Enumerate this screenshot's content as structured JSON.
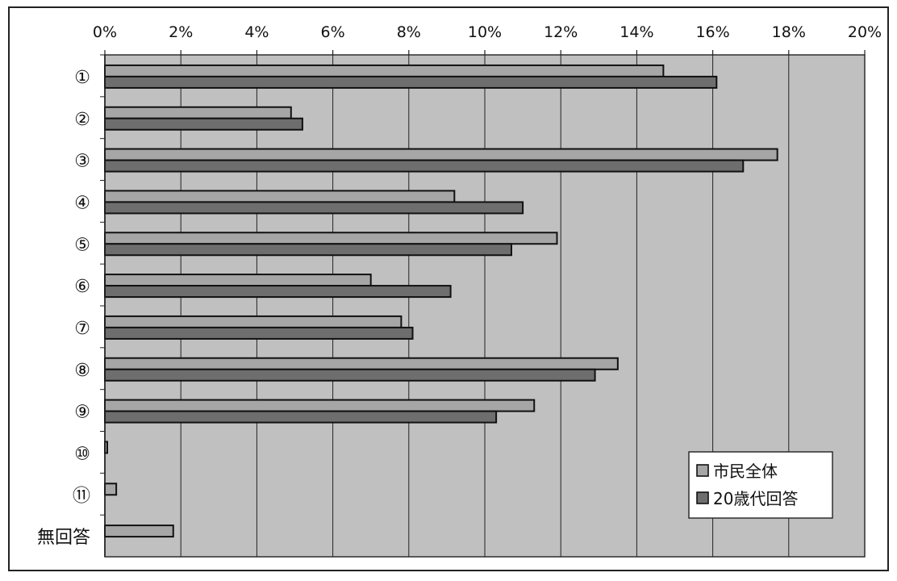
{
  "chart_data": {
    "type": "bar",
    "orientation": "horizontal",
    "categories": [
      "①",
      "②",
      "③",
      "④",
      "⑤",
      "⑥",
      "⑦",
      "⑧",
      "⑨",
      "⑩",
      "⑪",
      "無回答"
    ],
    "series": [
      {
        "name": "市民全体",
        "color": "#a6a6a6",
        "values": [
          14.7,
          4.9,
          17.7,
          9.2,
          11.9,
          7.0,
          7.8,
          13.5,
          11.3,
          0.05,
          0.3,
          1.8
        ]
      },
      {
        "name": "20歳代回答",
        "color": "#6e6e6e",
        "values": [
          16.1,
          5.2,
          16.8,
          11.0,
          10.7,
          9.1,
          8.1,
          12.9,
          10.3,
          0.0,
          0.0,
          0.0
        ]
      }
    ],
    "xlim": [
      0,
      20
    ],
    "xtick_labels": [
      "0%",
      "2%",
      "4%",
      "6%",
      "8%",
      "10%",
      "12%",
      "14%",
      "16%",
      "18%",
      "20%"
    ],
    "x_axis_position": "top",
    "grid": true,
    "plot_background": "#c0c0c0",
    "legend_position": "bottom-right"
  }
}
